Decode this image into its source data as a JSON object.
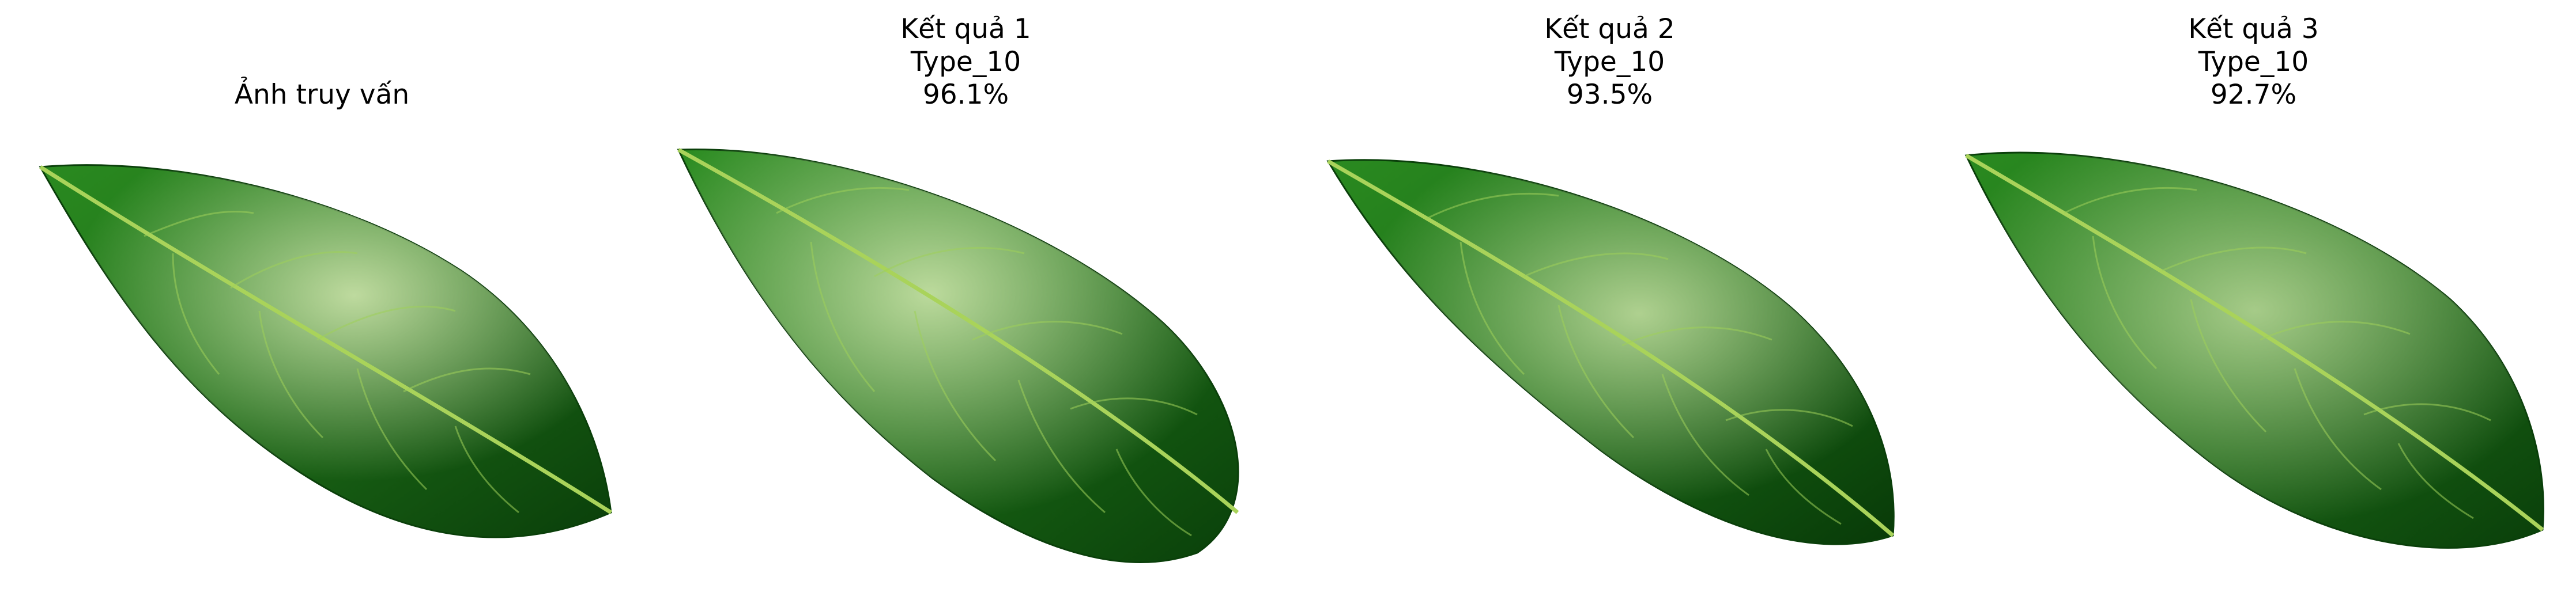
{
  "figure": {
    "panels": [
      {
        "role": "query",
        "lines": [
          "Ảnh truy vấn"
        ]
      },
      {
        "role": "result",
        "lines": [
          "Kết quả 1",
          "Type_10",
          "96.1%"
        ]
      },
      {
        "role": "result",
        "lines": [
          "Kết quả 2",
          "Type_10",
          "93.5%"
        ]
      },
      {
        "role": "result",
        "lines": [
          "Kết quả 3",
          "Type_10",
          "92.7%"
        ]
      }
    ],
    "colors": {
      "leaf_dark": "#0b4a0b",
      "leaf_mid": "#1f7a1a",
      "leaf_light": "#6fb83a",
      "highlight": "#dff2b8",
      "vein": "#a9d35a"
    }
  }
}
